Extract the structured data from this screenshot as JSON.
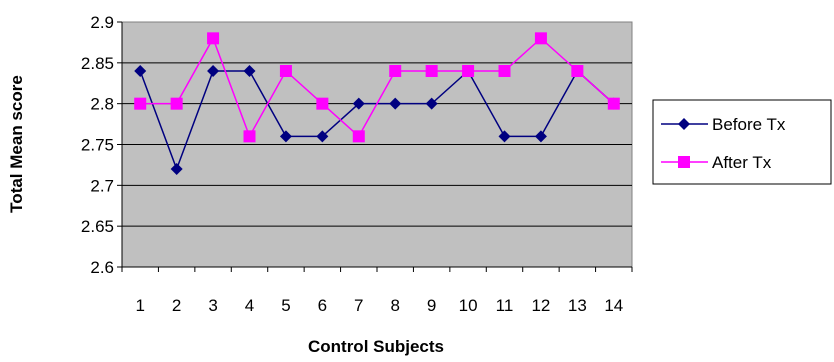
{
  "chart_data": {
    "type": "line",
    "xlabel": "Control Subjects",
    "ylabel": "Total Mean score",
    "ylim": [
      2.6,
      2.9
    ],
    "yticks": [
      "2.6",
      "2.65",
      "2.7",
      "2.75",
      "2.8",
      "2.85",
      "2.9"
    ],
    "categories": [
      "1",
      "2",
      "3",
      "4",
      "5",
      "6",
      "7",
      "8",
      "9",
      "10",
      "11",
      "12",
      "13",
      "14"
    ],
    "grid": true,
    "plot_background": "#c0c0c0",
    "legend_position": "right",
    "series": [
      {
        "name": "Before Tx",
        "color": "#000080",
        "marker": "diamond",
        "values": [
          2.84,
          2.72,
          2.84,
          2.84,
          2.76,
          2.76,
          2.8,
          2.8,
          2.8,
          2.84,
          2.76,
          2.76,
          2.84,
          2.8
        ]
      },
      {
        "name": "After Tx",
        "color": "#ff00ff",
        "marker": "square",
        "values": [
          2.8,
          2.8,
          2.88,
          2.76,
          2.84,
          2.8,
          2.76,
          2.84,
          2.84,
          2.84,
          2.84,
          2.88,
          2.84,
          2.8
        ]
      }
    ]
  }
}
